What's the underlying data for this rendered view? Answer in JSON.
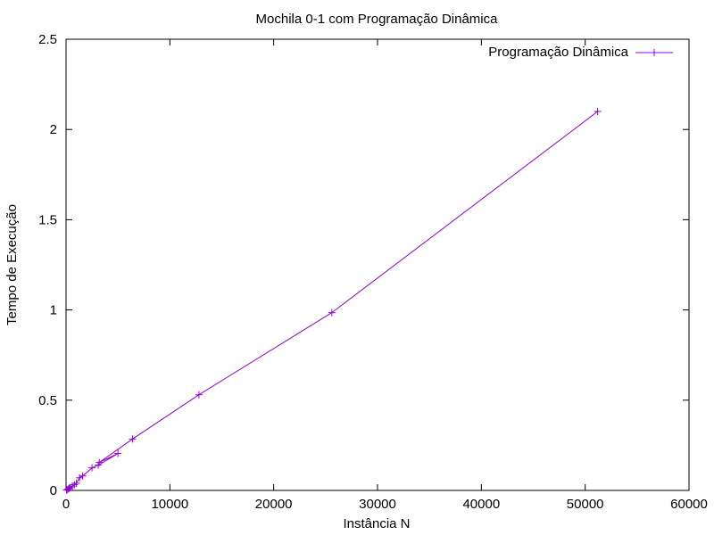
{
  "chart_data": {
    "type": "line",
    "title": "Mochila 0-1 com Programação Dinâmica",
    "xlabel": "Instância N",
    "ylabel": "Tempo de Execução",
    "xlim": [
      0,
      60000
    ],
    "ylim": [
      0,
      2.5
    ],
    "x_ticks": [
      0,
      10000,
      20000,
      30000,
      40000,
      50000,
      60000
    ],
    "x_tick_labels": [
      "0",
      "10000",
      "20000",
      "30000",
      "40000",
      "50000",
      "60000"
    ],
    "y_ticks": [
      0,
      0.5,
      1,
      1.5,
      2,
      2.5
    ],
    "y_tick_labels": [
      "0",
      "0.5",
      "1",
      "1.5",
      "2",
      "2.5"
    ],
    "grid": false,
    "legend_position": "top-right",
    "series": [
      {
        "name": "Programação Dinâmica",
        "color": "#9400d3",
        "marker": "plus",
        "points": [
          [
            50,
            0.002
          ],
          [
            100,
            0.004
          ],
          [
            200,
            0.008
          ],
          [
            300,
            0.012
          ],
          [
            400,
            0.016
          ],
          [
            600,
            0.024
          ],
          [
            800,
            0.032
          ],
          [
            1000,
            0.04
          ],
          [
            1300,
            0.07
          ],
          [
            1600,
            0.08
          ],
          [
            2500,
            0.125
          ],
          [
            3100,
            0.14
          ],
          [
            5000,
            0.205
          ],
          [
            3200,
            0.155
          ],
          [
            6400,
            0.285
          ],
          [
            12800,
            0.53
          ],
          [
            25600,
            0.985
          ],
          [
            51200,
            2.1
          ]
        ]
      }
    ]
  }
}
